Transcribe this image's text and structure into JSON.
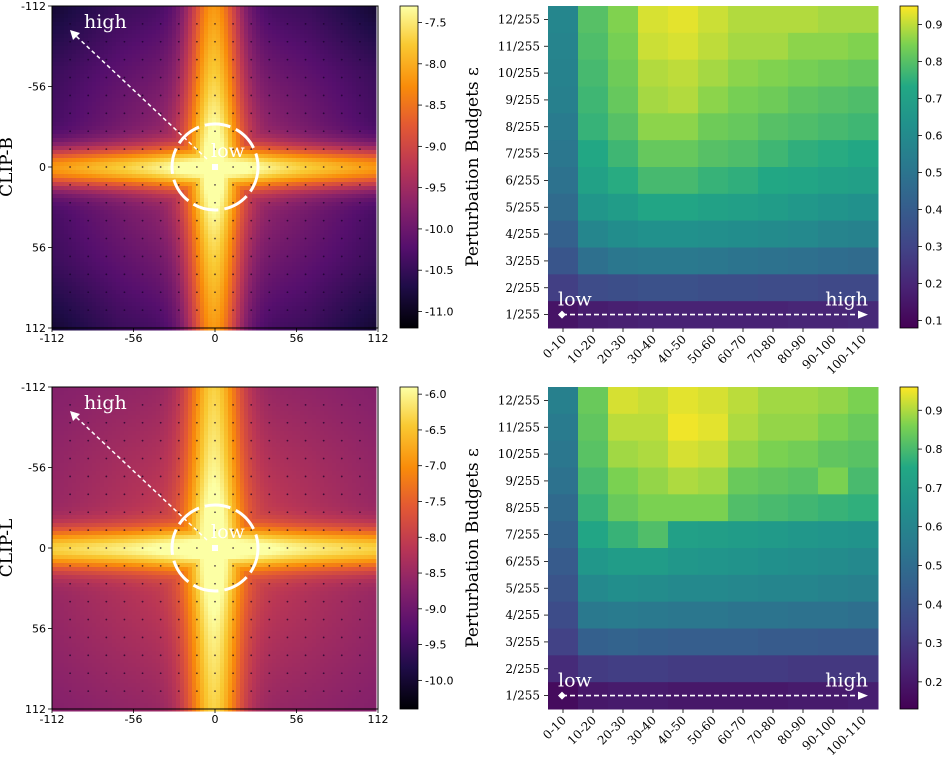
{
  "chart_data": [
    {
      "type": "heatmap",
      "title": "",
      "ylabel": "CLIP-B",
      "x_ticks": [
        "-112",
        "-56",
        "0",
        "56",
        "112"
      ],
      "y_ticks": [
        "-112",
        "-56",
        "0",
        "56",
        "112"
      ],
      "colormap": "inferno",
      "colorbar_ticks": [
        "-7.5",
        "-8.0",
        "-8.5",
        "-9.0",
        "-9.5",
        "-10.0",
        "-10.5",
        "-11.0"
      ],
      "value_range": [
        -11.2,
        -7.3
      ],
      "annotations": {
        "low": "low",
        "high": "high"
      }
    },
    {
      "type": "heatmap",
      "title": "",
      "ylabel": "Perturbation Budgets ε",
      "x_categories": [
        "0-10",
        "10-20",
        "20-30",
        "30-40",
        "40-50",
        "50-60",
        "60-70",
        "70-80",
        "80-90",
        "90-100",
        "100-110"
      ],
      "y_categories": [
        "12/255",
        "11/255",
        "10/255",
        "9/255",
        "8/255",
        "7/255",
        "6/255",
        "5/255",
        "4/255",
        "3/255",
        "2/255",
        "1/255"
      ],
      "colormap": "viridis",
      "colorbar_ticks": [
        "0.9",
        "0.8",
        "0.7",
        "0.6",
        "0.5",
        "0.4",
        "0.3",
        "0.2",
        "0.1"
      ],
      "value_range": [
        0.08,
        0.95
      ],
      "values": [
        [
          0.58,
          0.8,
          0.85,
          0.92,
          0.93,
          0.91,
          0.89,
          0.89,
          0.89,
          0.88,
          0.88
        ],
        [
          0.57,
          0.79,
          0.84,
          0.91,
          0.92,
          0.9,
          0.88,
          0.88,
          0.86,
          0.86,
          0.85
        ],
        [
          0.56,
          0.78,
          0.83,
          0.89,
          0.9,
          0.88,
          0.86,
          0.85,
          0.84,
          0.83,
          0.82
        ],
        [
          0.55,
          0.77,
          0.82,
          0.88,
          0.89,
          0.86,
          0.84,
          0.83,
          0.81,
          0.8,
          0.79
        ],
        [
          0.53,
          0.76,
          0.8,
          0.86,
          0.86,
          0.83,
          0.82,
          0.8,
          0.79,
          0.78,
          0.77
        ],
        [
          0.51,
          0.73,
          0.77,
          0.82,
          0.82,
          0.8,
          0.79,
          0.77,
          0.75,
          0.74,
          0.73
        ],
        [
          0.49,
          0.7,
          0.74,
          0.78,
          0.78,
          0.76,
          0.75,
          0.73,
          0.72,
          0.7,
          0.69
        ],
        [
          0.46,
          0.65,
          0.68,
          0.72,
          0.72,
          0.7,
          0.69,
          0.68,
          0.66,
          0.64,
          0.63
        ],
        [
          0.42,
          0.58,
          0.61,
          0.63,
          0.63,
          0.62,
          0.61,
          0.6,
          0.59,
          0.57,
          0.56
        ],
        [
          0.37,
          0.48,
          0.51,
          0.52,
          0.52,
          0.51,
          0.5,
          0.49,
          0.48,
          0.47,
          0.46
        ],
        [
          0.28,
          0.33,
          0.34,
          0.35,
          0.35,
          0.34,
          0.34,
          0.33,
          0.33,
          0.32,
          0.32
        ],
        [
          0.14,
          0.17,
          0.18,
          0.19,
          0.19,
          0.19,
          0.19,
          0.19,
          0.2,
          0.2,
          0.21
        ]
      ],
      "annotations": {
        "low": "low",
        "high": "high"
      }
    },
    {
      "type": "heatmap",
      "title": "",
      "ylabel": "CLIP-L",
      "x_ticks": [
        "-112",
        "-56",
        "0",
        "56",
        "112"
      ],
      "y_ticks": [
        "-112",
        "-56",
        "0",
        "56",
        "112"
      ],
      "colormap": "inferno",
      "colorbar_ticks": [
        "-6.0",
        "-6.5",
        "-7.0",
        "-7.5",
        "-8.0",
        "-8.5",
        "-9.0",
        "-9.5",
        "-10.0"
      ],
      "value_range": [
        -10.4,
        -5.9
      ],
      "annotations": {
        "low": "low",
        "high": "high"
      }
    },
    {
      "type": "heatmap",
      "title": "",
      "ylabel": "Perturbation Budgets ε",
      "x_categories": [
        "0-10",
        "10-20",
        "20-30",
        "30-40",
        "40-50",
        "50-60",
        "60-70",
        "70-80",
        "80-90",
        "90-100",
        "100-110"
      ],
      "y_categories": [
        "12/255",
        "11/255",
        "10/255",
        "9/255",
        "8/255",
        "7/255",
        "6/255",
        "5/255",
        "4/255",
        "3/255",
        "2/255",
        "1/255"
      ],
      "colormap": "viridis",
      "colorbar_ticks": [
        "0.9",
        "0.8",
        "0.7",
        "0.6",
        "0.5",
        "0.4",
        "0.3",
        "0.2"
      ],
      "value_range": [
        0.13,
        0.96
      ],
      "values": [
        [
          0.58,
          0.84,
          0.93,
          0.92,
          0.94,
          0.93,
          0.91,
          0.89,
          0.89,
          0.88,
          0.86
        ],
        [
          0.56,
          0.83,
          0.91,
          0.91,
          0.95,
          0.94,
          0.9,
          0.88,
          0.88,
          0.86,
          0.84
        ],
        [
          0.54,
          0.82,
          0.89,
          0.9,
          0.93,
          0.92,
          0.88,
          0.86,
          0.85,
          0.83,
          0.82
        ],
        [
          0.52,
          0.8,
          0.86,
          0.88,
          0.9,
          0.89,
          0.84,
          0.83,
          0.82,
          0.86,
          0.8
        ],
        [
          0.49,
          0.78,
          0.84,
          0.86,
          0.86,
          0.86,
          0.81,
          0.8,
          0.79,
          0.78,
          0.77
        ],
        [
          0.46,
          0.74,
          0.78,
          0.81,
          0.72,
          0.71,
          0.7,
          0.69,
          0.68,
          0.67,
          0.66
        ],
        [
          0.43,
          0.68,
          0.7,
          0.7,
          0.68,
          0.67,
          0.66,
          0.65,
          0.64,
          0.63,
          0.62
        ],
        [
          0.4,
          0.62,
          0.64,
          0.63,
          0.62,
          0.62,
          0.61,
          0.6,
          0.6,
          0.59,
          0.58
        ],
        [
          0.37,
          0.55,
          0.56,
          0.55,
          0.54,
          0.54,
          0.53,
          0.53,
          0.52,
          0.52,
          0.51
        ],
        [
          0.33,
          0.45,
          0.46,
          0.45,
          0.44,
          0.44,
          0.44,
          0.43,
          0.43,
          0.42,
          0.42
        ],
        [
          0.26,
          0.31,
          0.32,
          0.32,
          0.31,
          0.31,
          0.31,
          0.31,
          0.3,
          0.3,
          0.3
        ],
        [
          0.16,
          0.2,
          0.21,
          0.21,
          0.2,
          0.2,
          0.2,
          0.2,
          0.21,
          0.21,
          0.22
        ]
      ],
      "annotations": {
        "low": "low",
        "high": "high"
      }
    }
  ]
}
